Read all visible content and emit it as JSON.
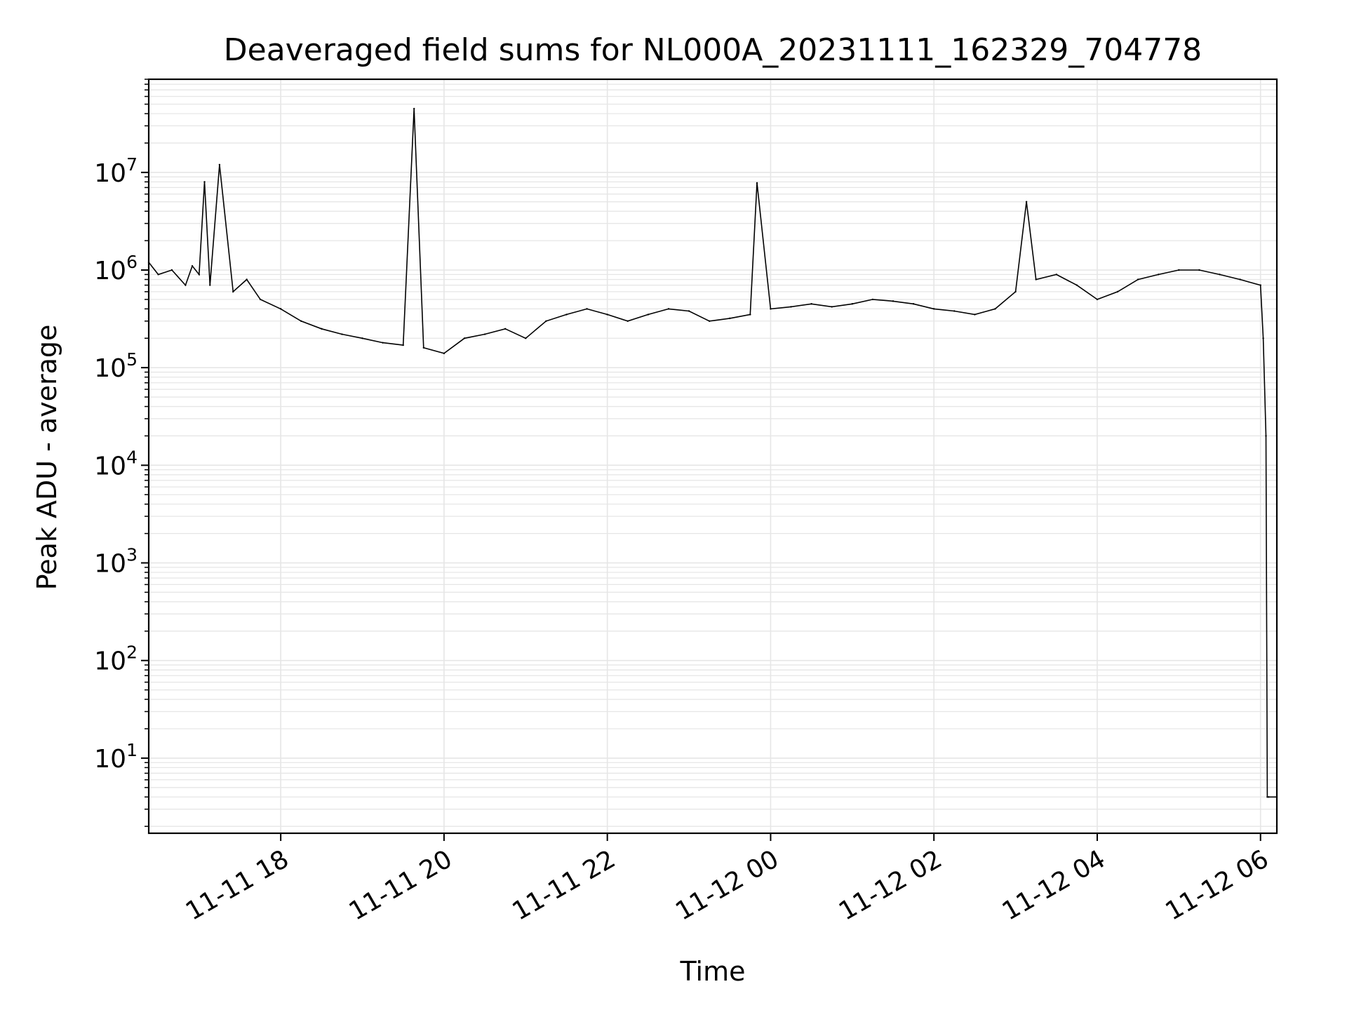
{
  "chart_data": {
    "type": "line",
    "title": "Deaveraged field sums for NL000A_20231111_162329_704778",
    "xlabel": "Time",
    "ylabel": "Peak ADU - average",
    "yscale": "log",
    "ylim": [
      1.7,
      90000000
    ],
    "xlim": [
      "2023-11-11 16:23",
      "2023-11-12 06:12"
    ],
    "grid": true,
    "line_color": "#000000",
    "grid_color": "#e6e6e6",
    "x_ticks": [
      {
        "value": "2023-11-11 18:00",
        "label": "11-11 18"
      },
      {
        "value": "2023-11-11 20:00",
        "label": "11-11 20"
      },
      {
        "value": "2023-11-11 22:00",
        "label": "11-11 22"
      },
      {
        "value": "2023-11-12 00:00",
        "label": "11-12 00"
      },
      {
        "value": "2023-11-12 02:00",
        "label": "11-12 02"
      },
      {
        "value": "2023-11-12 04:00",
        "label": "11-12 04"
      },
      {
        "value": "2023-11-12 06:00",
        "label": "11-12 06"
      }
    ],
    "y_ticks": [
      {
        "value": 10,
        "base": "10",
        "exp": "1"
      },
      {
        "value": 100,
        "base": "10",
        "exp": "2"
      },
      {
        "value": 1000,
        "base": "10",
        "exp": "3"
      },
      {
        "value": 10000,
        "base": "10",
        "exp": "4"
      },
      {
        "value": 100000,
        "base": "10",
        "exp": "5"
      },
      {
        "value": 1000000,
        "base": "10",
        "exp": "6"
      },
      {
        "value": 10000000,
        "base": "10",
        "exp": "7"
      }
    ],
    "series": [
      {
        "x": [
          "2023-11-11 16:23",
          "2023-11-11 16:30",
          "2023-11-11 16:40",
          "2023-11-11 16:50",
          "2023-11-11 16:55",
          "2023-11-11 17:00",
          "2023-11-11 17:04",
          "2023-11-11 17:08",
          "2023-11-11 17:15",
          "2023-11-11 17:25",
          "2023-11-11 17:35",
          "2023-11-11 17:45",
          "2023-11-11 18:00",
          "2023-11-11 18:15",
          "2023-11-11 18:30",
          "2023-11-11 18:45",
          "2023-11-11 19:00",
          "2023-11-11 19:15",
          "2023-11-11 19:30",
          "2023-11-11 19:38",
          "2023-11-11 19:45",
          "2023-11-11 20:00",
          "2023-11-11 20:15",
          "2023-11-11 20:30",
          "2023-11-11 20:45",
          "2023-11-11 21:00",
          "2023-11-11 21:15",
          "2023-11-11 21:30",
          "2023-11-11 21:45",
          "2023-11-11 22:00",
          "2023-11-11 22:15",
          "2023-11-11 22:30",
          "2023-11-11 22:45",
          "2023-11-11 23:00",
          "2023-11-11 23:15",
          "2023-11-11 23:30",
          "2023-11-11 23:45",
          "2023-11-11 23:50",
          "2023-11-12 00:00",
          "2023-11-12 00:15",
          "2023-11-12 00:30",
          "2023-11-12 00:45",
          "2023-11-12 01:00",
          "2023-11-12 01:15",
          "2023-11-12 01:30",
          "2023-11-12 01:45",
          "2023-11-12 02:00",
          "2023-11-12 02:15",
          "2023-11-12 02:30",
          "2023-11-12 02:45",
          "2023-11-12 03:00",
          "2023-11-12 03:08",
          "2023-11-12 03:15",
          "2023-11-12 03:30",
          "2023-11-12 03:45",
          "2023-11-12 04:00",
          "2023-11-12 04:15",
          "2023-11-12 04:30",
          "2023-11-12 04:45",
          "2023-11-12 05:00",
          "2023-11-12 05:15",
          "2023-11-12 05:30",
          "2023-11-12 05:45",
          "2023-11-12 06:00",
          "2023-11-12 06:02",
          "2023-11-12 06:04",
          "2023-11-12 06:05",
          "2023-11-12 06:06",
          "2023-11-12 06:12"
        ],
        "y": [
          1200000,
          900000,
          1000000,
          700000,
          1100000,
          900000,
          8000000,
          700000,
          12000000,
          600000,
          800000,
          500000,
          400000,
          300000,
          250000,
          220000,
          200000,
          180000,
          170000,
          45000000,
          160000,
          140000,
          200000,
          220000,
          250000,
          200000,
          300000,
          350000,
          400000,
          350000,
          300000,
          350000,
          400000,
          380000,
          300000,
          320000,
          350000,
          7800000,
          400000,
          420000,
          450000,
          420000,
          450000,
          500000,
          480000,
          450000,
          400000,
          380000,
          350000,
          400000,
          600000,
          5000000,
          800000,
          900000,
          700000,
          500000,
          600000,
          800000,
          900000,
          1000000,
          1000000,
          900000,
          800000,
          700000,
          200000,
          20000,
          4,
          4,
          4
        ]
      }
    ]
  }
}
